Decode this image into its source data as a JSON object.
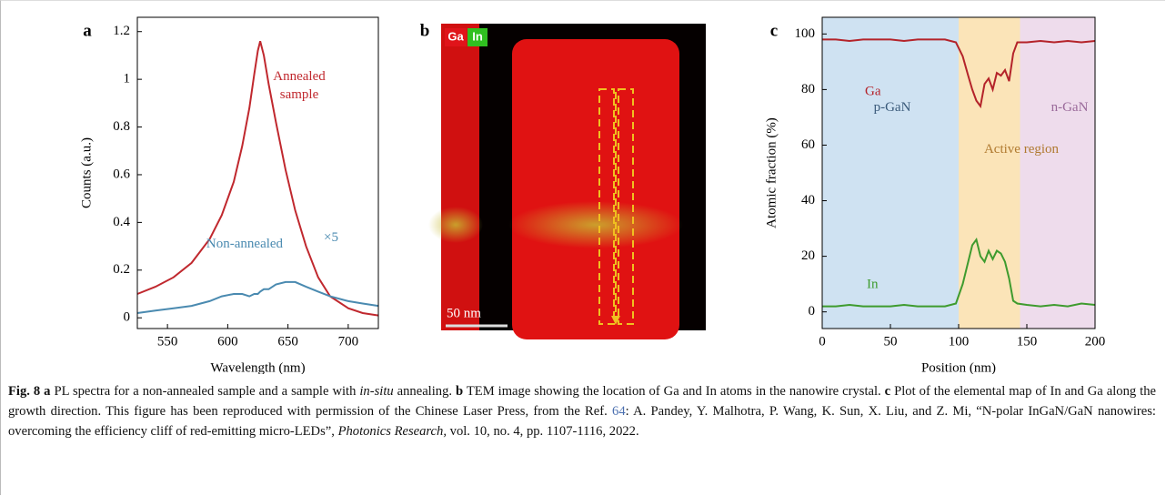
{
  "chart_data": [
    {
      "type": "line",
      "panel": "a",
      "xlabel": "Wavelength (nm)",
      "ylabel": "Counts (a.u.)",
      "xlim": [
        525,
        725
      ],
      "ylim": [
        -0.045,
        1.26
      ],
      "xticks": [
        550,
        600,
        650,
        700
      ],
      "yticks": [
        0,
        0.2,
        0.4,
        0.6,
        0.8,
        1.0,
        1.2
      ],
      "x": [
        525,
        540,
        555,
        570,
        585,
        595,
        605,
        612,
        618,
        622,
        625,
        627,
        630,
        634,
        640,
        648,
        656,
        665,
        675,
        685,
        700,
        712,
        725
      ],
      "series": [
        {
          "name": "Annealed sample",
          "color": "#c0282e",
          "values": [
            0.1,
            0.13,
            0.17,
            0.23,
            0.33,
            0.43,
            0.57,
            0.72,
            0.88,
            1.02,
            1.12,
            1.16,
            1.1,
            0.98,
            0.82,
            0.62,
            0.45,
            0.3,
            0.17,
            0.09,
            0.04,
            0.02,
            0.01
          ]
        },
        {
          "name": "Non-annealed",
          "color": "#4a8ab0",
          "values": [
            0.02,
            0.03,
            0.04,
            0.05,
            0.07,
            0.09,
            0.1,
            0.1,
            0.09,
            0.1,
            0.1,
            0.11,
            0.12,
            0.12,
            0.14,
            0.15,
            0.15,
            0.13,
            0.11,
            0.09,
            0.07,
            0.06,
            0.05
          ]
        }
      ],
      "annotations": [
        "×5"
      ]
    },
    {
      "type": "line",
      "panel": "c",
      "xlabel": "Position (nm)",
      "ylabel": "Atomic fraction (%)",
      "xlim": [
        0,
        200
      ],
      "ylim": [
        -6,
        106
      ],
      "xticks": [
        0,
        50,
        100,
        150,
        200
      ],
      "yticks": [
        0,
        20,
        40,
        60,
        80,
        100
      ],
      "regions": [
        {
          "name": "p-GaN",
          "range": [
            0,
            100
          ],
          "color": "#cfe2f2"
        },
        {
          "name": "Active region",
          "range": [
            100,
            145
          ],
          "color": "#fbe4b8"
        },
        {
          "name": "n-GaN",
          "range": [
            145,
            200
          ],
          "color": "#eedcec"
        }
      ],
      "x": [
        0,
        10,
        20,
        30,
        40,
        50,
        60,
        70,
        80,
        90,
        98,
        103,
        107,
        110,
        113,
        116,
        119,
        122,
        125,
        128,
        131,
        134,
        137,
        140,
        143,
        150,
        160,
        170,
        180,
        190,
        200
      ],
      "series": [
        {
          "name": "Ga",
          "color": "#b4232a",
          "values": [
            98,
            98,
            97.5,
            98,
            98,
            98,
            97.5,
            98,
            98,
            98,
            97,
            92,
            85,
            80,
            76,
            74,
            82,
            84,
            80,
            86,
            85,
            87,
            83,
            93,
            97,
            97,
            97.5,
            97,
            97.5,
            97,
            97.5
          ]
        },
        {
          "name": "In",
          "color": "#3e9b2e",
          "values": [
            2,
            2,
            2.5,
            2,
            2,
            2,
            2.5,
            2,
            2,
            2,
            3,
            10,
            18,
            24,
            26,
            20,
            18,
            22,
            19,
            22,
            21,
            18,
            12,
            4,
            3,
            2.5,
            2,
            2.5,
            2,
            3,
            2.5
          ]
        }
      ]
    }
  ],
  "panel_b": {
    "label": "b",
    "channels": [
      "Ga",
      "In"
    ],
    "scale_bar": "50 nm"
  },
  "caption": [
    {
      "text": "Fig. 8 a",
      "style": "bold"
    },
    {
      "text": " PL spectra for a non-annealed sample and a sample with ",
      "style": "normal"
    },
    {
      "text": "in-situ",
      "style": "italic"
    },
    {
      "text": " annealing. ",
      "style": "normal"
    },
    {
      "text": "b",
      "style": "bold"
    },
    {
      "text": " TEM image showing the location of Ga and In atoms in the nanowire crystal. ",
      "style": "normal"
    },
    {
      "text": "c",
      "style": "bold"
    },
    {
      "text": " Plot of the elemental map of In and Ga along the growth direction. This figure has been reproduced with permission of the Chinese Laser Press, from the Ref. ",
      "style": "normal"
    },
    {
      "text": "64",
      "style": "link"
    },
    {
      "text": ": A. Pandey, Y. Malhotra, P. Wang, K. Sun, X. Liu, and Z. Mi, “N-polar InGaN/GaN nanowires: overcoming the efficiency cliff of red-emitting micro-LEDs”, ",
      "style": "normal"
    },
    {
      "text": "Photonics Research,",
      "style": "italic"
    },
    {
      "text": " vol. 10, no. 4, pp. 1107-1116, 2022.",
      "style": "normal"
    }
  ]
}
